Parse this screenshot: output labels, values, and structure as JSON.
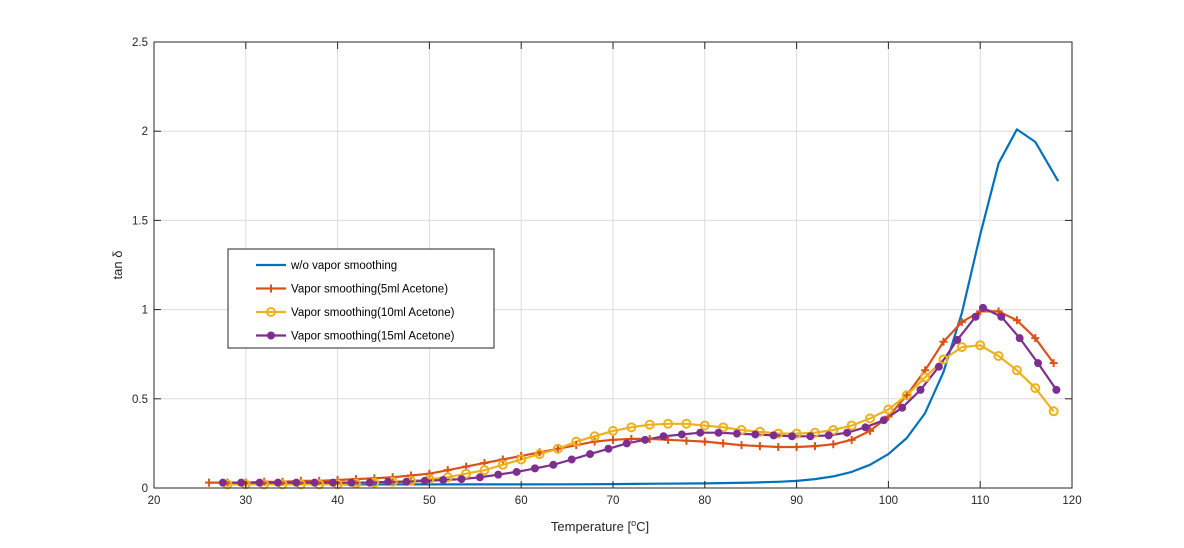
{
  "chart_data": {
    "type": "line",
    "xlabel": "Temperature [",
    "xlabel_sup": "o",
    "xlabel_unit": "C]",
    "ylabel": "tan δ",
    "xlim": [
      20,
      120
    ],
    "ylim": [
      0,
      2.5
    ],
    "xticks": [
      "20",
      "30",
      "40",
      "50",
      "60",
      "70",
      "80",
      "90",
      "100",
      "110",
      "120"
    ],
    "yticks": [
      "0",
      "0.5",
      "1",
      "1.5",
      "2",
      "2.5"
    ],
    "grid": true,
    "legend_position": "center-left",
    "series": [
      {
        "name": "w/o vapor smoothing",
        "color": "#0072BD",
        "marker": "none",
        "x": [
          28,
          30,
          35,
          40,
          45,
          50,
          55,
          60,
          65,
          70,
          75,
          80,
          85,
          88,
          90,
          92,
          94,
          96,
          98,
          100,
          102,
          104,
          106,
          108,
          110,
          112,
          114,
          116,
          118.5
        ],
        "y": [
          0.02,
          0.02,
          0.02,
          0.02,
          0.02,
          0.02,
          0.02,
          0.02,
          0.021,
          0.022,
          0.024,
          0.026,
          0.03,
          0.035,
          0.04,
          0.05,
          0.065,
          0.09,
          0.13,
          0.19,
          0.28,
          0.42,
          0.65,
          0.98,
          1.42,
          1.82,
          2.01,
          1.94,
          1.72
        ]
      },
      {
        "name": "Vapor smoothing(5ml Acetone)",
        "color": "#D95319",
        "marker": "+",
        "x": [
          26,
          28,
          30,
          32,
          34,
          36,
          38,
          40,
          42,
          44,
          46,
          48,
          50,
          52,
          54,
          56,
          58,
          60,
          62,
          64,
          66,
          68,
          70,
          72,
          74,
          76,
          78,
          80,
          82,
          84,
          86,
          88,
          90,
          92,
          94,
          96,
          98,
          100,
          102,
          104,
          106,
          108,
          110,
          112,
          114,
          116,
          118
        ],
        "y": [
          0.03,
          0.03,
          0.03,
          0.035,
          0.035,
          0.04,
          0.04,
          0.045,
          0.05,
          0.055,
          0.06,
          0.07,
          0.08,
          0.1,
          0.12,
          0.14,
          0.16,
          0.18,
          0.2,
          0.22,
          0.24,
          0.26,
          0.27,
          0.275,
          0.275,
          0.27,
          0.265,
          0.26,
          0.25,
          0.24,
          0.235,
          0.23,
          0.23,
          0.235,
          0.245,
          0.27,
          0.32,
          0.4,
          0.52,
          0.66,
          0.82,
          0.93,
          0.99,
          0.99,
          0.94,
          0.84,
          0.7
        ]
      },
      {
        "name": "Vapor smoothing(10ml Acetone)",
        "color": "#EDB120",
        "marker": "o",
        "x": [
          28,
          30,
          32,
          34,
          36,
          38,
          40,
          42,
          44,
          46,
          48,
          50,
          52,
          54,
          56,
          58,
          60,
          62,
          64,
          66,
          68,
          70,
          72,
          74,
          76,
          78,
          80,
          82,
          84,
          86,
          88,
          90,
          92,
          94,
          96,
          98,
          100,
          102,
          104,
          106,
          108,
          110,
          112,
          114,
          116,
          118
        ],
        "y": [
          0.02,
          0.02,
          0.02,
          0.02,
          0.02,
          0.02,
          0.02,
          0.025,
          0.03,
          0.035,
          0.04,
          0.05,
          0.06,
          0.08,
          0.1,
          0.13,
          0.16,
          0.19,
          0.22,
          0.26,
          0.29,
          0.32,
          0.34,
          0.355,
          0.36,
          0.36,
          0.35,
          0.34,
          0.325,
          0.315,
          0.305,
          0.305,
          0.31,
          0.325,
          0.35,
          0.39,
          0.44,
          0.52,
          0.62,
          0.72,
          0.79,
          0.8,
          0.74,
          0.66,
          0.56,
          0.43
        ]
      },
      {
        "name": "Vapor smoothing(15ml Acetone)",
        "color": "#7E2F8E",
        "marker": "•",
        "x": [
          27.5,
          29.5,
          31.5,
          33.5,
          35.5,
          37.5,
          39.5,
          41.5,
          43.5,
          45.5,
          47.5,
          49.5,
          51.5,
          53.5,
          55.5,
          57.5,
          59.5,
          61.5,
          63.5,
          65.5,
          67.5,
          69.5,
          71.5,
          73.5,
          75.5,
          77.5,
          79.5,
          81.5,
          83.5,
          85.5,
          87.5,
          89.5,
          91.5,
          93.5,
          95.5,
          97.5,
          99.5,
          101.5,
          103.5,
          105.5,
          107.5,
          109.5,
          110.3,
          112.3,
          114.3,
          116.3,
          118.3
        ],
        "y": [
          0.03,
          0.03,
          0.03,
          0.03,
          0.03,
          0.03,
          0.03,
          0.03,
          0.03,
          0.035,
          0.035,
          0.04,
          0.045,
          0.05,
          0.06,
          0.075,
          0.09,
          0.11,
          0.13,
          0.16,
          0.19,
          0.22,
          0.25,
          0.27,
          0.29,
          0.3,
          0.31,
          0.31,
          0.305,
          0.3,
          0.295,
          0.29,
          0.29,
          0.295,
          0.31,
          0.34,
          0.38,
          0.45,
          0.55,
          0.68,
          0.83,
          0.96,
          1.01,
          0.96,
          0.84,
          0.7,
          0.55
        ]
      }
    ]
  }
}
